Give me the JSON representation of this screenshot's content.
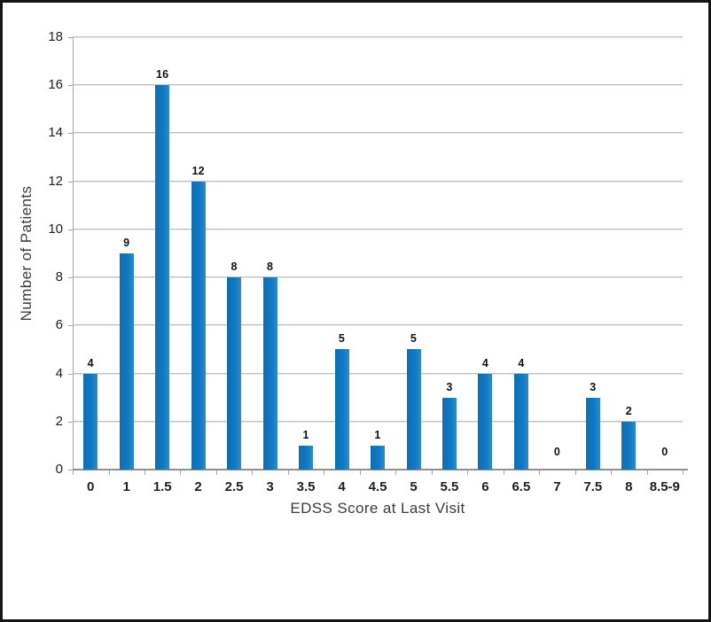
{
  "figure": {
    "frame_border_color": "#161616",
    "background_color": "#ffffff"
  },
  "chart_data": {
    "type": "bar",
    "title": "",
    "categories": [
      "0",
      "1",
      "1.5",
      "2",
      "2.5",
      "3",
      "3.5",
      "4",
      "4.5",
      "5",
      "5.5",
      "6",
      "6.5",
      "7",
      "7.5",
      "8",
      "8.5-9"
    ],
    "values": [
      4,
      9,
      16,
      12,
      8,
      8,
      1,
      5,
      1,
      5,
      3,
      4,
      4,
      0,
      3,
      2,
      0
    ],
    "value_labels": [
      "4",
      "9",
      "16",
      "12",
      "8",
      "8",
      "1",
      "5",
      "1",
      "5",
      "3",
      "4",
      "4",
      "0",
      "3",
      "2",
      "0"
    ],
    "xlabel": "EDSS Score at Last Visit",
    "ylabel": "Number of Patients",
    "ylim": [
      0,
      18
    ],
    "yticks": [
      0,
      2,
      4,
      6,
      8,
      10,
      12,
      14,
      16,
      18
    ],
    "grid": true,
    "legend": "none",
    "bar_color": "#0f78c1",
    "bar_color_dark": "#0d6fb5",
    "bar_color_light": "#2e8bcc",
    "gridline_color": "#bfbfbf",
    "axis_color": "#8f8f8f",
    "axis_tick_color": "#a6a6a6",
    "tick_label_color": "#1f1f1f",
    "value_label_color": "#111111",
    "axis_title_color": "#3c3c3c"
  }
}
